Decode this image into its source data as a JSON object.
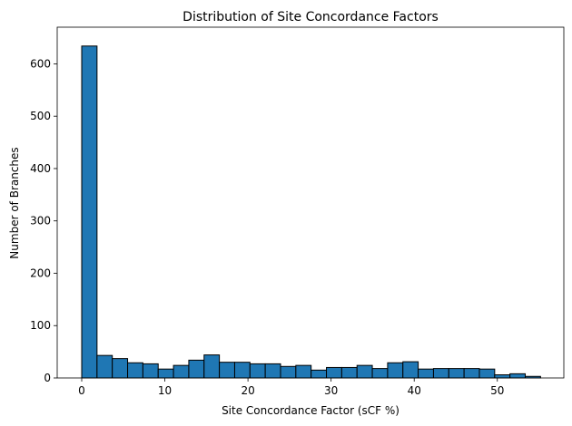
{
  "chart_data": {
    "type": "bar",
    "title": "Distribution of Site Concordance Factors",
    "xlabel": "Site Concordance Factor (sCF %)",
    "ylabel": "Number of Branches",
    "bin_start": 0,
    "bin_width": 1.84,
    "values": [
      634,
      43,
      37,
      29,
      27,
      17,
      24,
      34,
      44,
      30,
      30,
      27,
      27,
      22,
      24,
      15,
      20,
      20,
      24,
      18,
      29,
      31,
      17,
      18,
      18,
      18,
      17,
      6,
      8,
      3
    ],
    "xlim": [
      -2.95,
      58.0
    ],
    "ylim": [
      0,
      670
    ],
    "xticks": [
      0,
      10,
      20,
      30,
      40,
      50
    ],
    "yticks": [
      0,
      100,
      200,
      300,
      400,
      500,
      600
    ],
    "grid": false,
    "bar_color": "#1f77b4"
  }
}
